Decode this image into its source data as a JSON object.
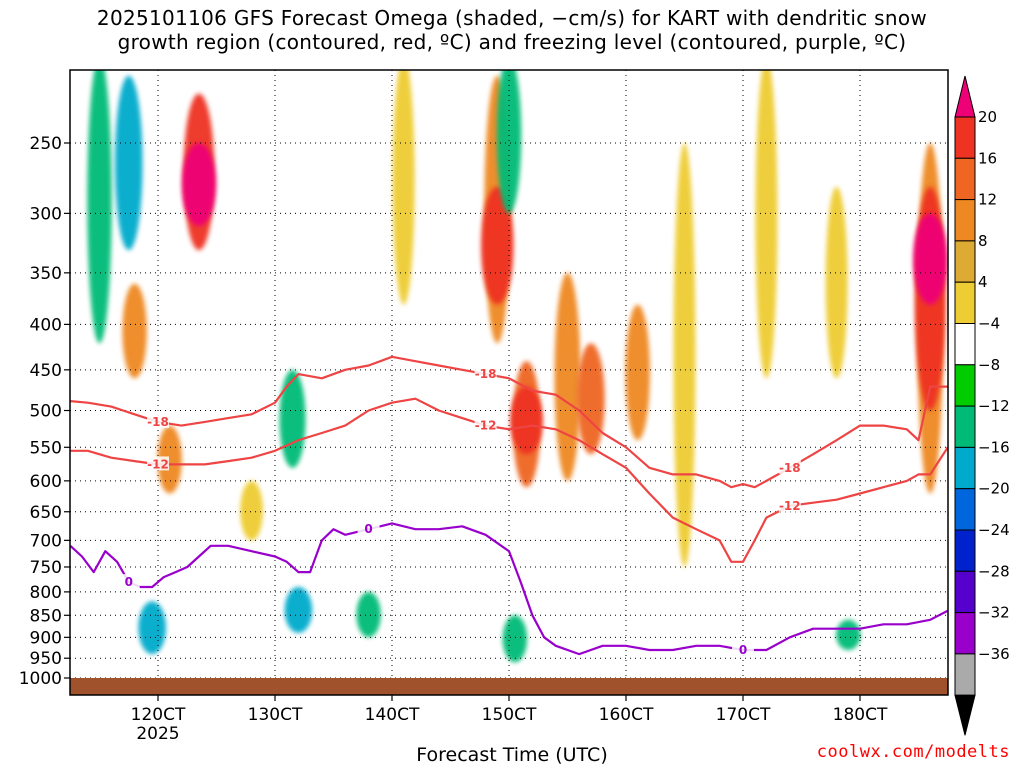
{
  "title": {
    "line1": "2025101106 GFS Forecast Omega (shaded, −cm/s) for KART with dendritic snow",
    "line2": "growth region (contoured, red, ºC) and freezing level (contoured, purple, ºC)"
  },
  "credit": "coolwx.com/modelts",
  "chart_data": {
    "type": "heatmap",
    "title": "2025101106 GFS Forecast Omega (shaded, −cm/s) for KART with dendritic snow growth region (contoured, red, ºC) and freezing level (contoured, purple, ºC)",
    "xlabel": "Forecast Time (UTC)",
    "ylabel": "",
    "x_unit": "hours",
    "xlim": [
      112.5,
      187.5
    ],
    "x_ticks": [
      {
        "value": 120,
        "label": "120CT"
      },
      {
        "value": 130,
        "label": "130CT"
      },
      {
        "value": 140,
        "label": "140CT"
      },
      {
        "value": 150,
        "label": "150CT"
      },
      {
        "value": 160,
        "label": "160CT"
      },
      {
        "value": 170,
        "label": "170CT"
      },
      {
        "value": 180,
        "label": "180CT"
      }
    ],
    "x_sublabel": "2025",
    "y_unit": "hPa",
    "ylim": [
      1000,
      200
    ],
    "y_ticks": [
      250,
      300,
      350,
      400,
      450,
      500,
      550,
      600,
      650,
      700,
      750,
      800,
      850,
      900,
      950,
      1000
    ],
    "colorbar": {
      "ticks": [
        "20",
        "16",
        "12",
        "8",
        "4",
        "−4",
        "−8",
        "−12",
        "−16",
        "−20",
        "−24",
        "−28",
        "−32",
        "−36"
      ],
      "colors": [
        "#ee0077",
        "#ee3322",
        "#ee6622",
        "#ee8822",
        "#ddaa33",
        "#eecc33",
        "#ffffff",
        "#00cc00",
        "#00bb77",
        "#00aacc",
        "#0066dd",
        "#0022cc",
        "#5500cc",
        "#9900cc",
        "#aaaaaa",
        "#000000"
      ]
    },
    "omega_cells": [
      {
        "x": 115,
        "p": [
          200,
          420
        ],
        "value": -8
      },
      {
        "x": 117.5,
        "p": [
          210,
          330
        ],
        "value": -12
      },
      {
        "x": 118,
        "p": [
          360,
          460
        ],
        "value": 8
      },
      {
        "x": 123.5,
        "p": [
          220,
          330
        ],
        "value": 16
      },
      {
        "x": 123.5,
        "p": [
          250,
          310
        ],
        "value": 20
      },
      {
        "x": 121,
        "p": [
          520,
          620
        ],
        "value": 8
      },
      {
        "x": 119.5,
        "p": [
          820,
          940
        ],
        "value": -12
      },
      {
        "x": 128,
        "p": [
          600,
          700
        ],
        "value": 6
      },
      {
        "x": 131.5,
        "p": [
          450,
          580
        ],
        "value": -10
      },
      {
        "x": 132,
        "p": [
          790,
          890
        ],
        "value": -12
      },
      {
        "x": 138,
        "p": [
          800,
          900
        ],
        "value": -8
      },
      {
        "x": 141,
        "p": [
          200,
          380
        ],
        "value": 5
      },
      {
        "x": 149,
        "p": [
          210,
          420
        ],
        "value": 10
      },
      {
        "x": 149,
        "p": [
          280,
          380
        ],
        "value": 18
      },
      {
        "x": 150,
        "p": [
          200,
          300
        ],
        "value": -8
      },
      {
        "x": 151.5,
        "p": [
          440,
          610
        ],
        "value": 12
      },
      {
        "x": 151.5,
        "p": [
          470,
          560
        ],
        "value": 18
      },
      {
        "x": 150.5,
        "p": [
          850,
          960
        ],
        "value": -8
      },
      {
        "x": 155,
        "p": [
          350,
          600
        ],
        "value": 10
      },
      {
        "x": 157,
        "p": [
          420,
          560
        ],
        "value": 12
      },
      {
        "x": 161,
        "p": [
          380,
          540
        ],
        "value": 8
      },
      {
        "x": 165,
        "p": [
          250,
          750
        ],
        "value": 5
      },
      {
        "x": 172,
        "p": [
          200,
          460
        ],
        "value": 5
      },
      {
        "x": 178,
        "p": [
          280,
          460
        ],
        "value": 5
      },
      {
        "x": 179,
        "p": [
          860,
          930
        ],
        "value": -8
      },
      {
        "x": 186,
        "p": [
          250,
          620
        ],
        "value": 10
      },
      {
        "x": 186,
        "p": [
          280,
          500
        ],
        "value": 16
      },
      {
        "x": 186,
        "p": [
          300,
          380
        ],
        "value": 20
      }
    ],
    "series": [
      {
        "name": "-18 ºC isotherm",
        "color": "#ee4444",
        "label": "-18",
        "x": [
          112.5,
          114,
          116,
          118,
          120,
          122,
          124,
          126,
          128,
          130,
          131,
          132,
          134,
          136,
          138,
          140,
          142,
          144,
          146,
          148,
          150,
          152,
          154,
          156,
          158,
          160,
          162,
          164,
          166,
          168,
          169,
          170,
          171,
          172,
          174,
          176,
          178,
          180,
          182,
          184,
          185,
          186,
          187.5
        ],
        "y": [
          488,
          490,
          495,
          505,
          515,
          520,
          515,
          510,
          505,
          490,
          470,
          455,
          460,
          450,
          445,
          435,
          440,
          445,
          450,
          455,
          460,
          475,
          480,
          500,
          530,
          550,
          580,
          590,
          590,
          600,
          610,
          605,
          610,
          600,
          580,
          560,
          540,
          520,
          520,
          525,
          540,
          470,
          470
        ]
      },
      {
        "name": "-12 ºC isotherm",
        "color": "#ee4444",
        "label": "-12",
        "x": [
          112.5,
          114,
          116,
          118,
          120,
          122,
          124,
          126,
          128,
          130,
          132,
          134,
          136,
          138,
          140,
          142,
          144,
          146,
          148,
          150,
          152,
          154,
          156,
          158,
          160,
          162,
          164,
          166,
          168,
          169,
          170,
          171,
          172,
          174,
          176,
          178,
          180,
          182,
          184,
          185,
          186,
          187.5
        ],
        "y": [
          555,
          555,
          565,
          570,
          575,
          575,
          575,
          570,
          565,
          555,
          540,
          530,
          520,
          500,
          490,
          485,
          500,
          510,
          520,
          525,
          520,
          525,
          540,
          560,
          580,
          620,
          660,
          680,
          700,
          740,
          740,
          700,
          660,
          640,
          635,
          630,
          620,
          610,
          600,
          590,
          590,
          550
        ]
      },
      {
        "name": "0 ºC freezing level",
        "color": "#9900cc",
        "label": "0",
        "x": [
          112.5,
          113.5,
          114.5,
          115.5,
          116.5,
          117.5,
          118.5,
          119.5,
          120.5,
          121.5,
          122.5,
          123.5,
          124.5,
          126,
          128,
          130,
          131,
          132,
          133,
          134,
          135,
          136,
          138,
          140,
          142,
          144,
          146,
          148,
          150,
          151,
          152,
          153,
          154,
          156,
          158,
          160,
          162,
          164,
          166,
          168,
          170,
          172,
          174,
          176,
          178,
          180,
          182,
          184,
          186,
          187.5
        ],
        "y": [
          710,
          730,
          760,
          720,
          740,
          780,
          790,
          790,
          770,
          760,
          750,
          730,
          710,
          710,
          720,
          730,
          740,
          760,
          760,
          700,
          680,
          690,
          680,
          670,
          680,
          680,
          675,
          690,
          720,
          780,
          850,
          900,
          920,
          940,
          920,
          920,
          930,
          930,
          920,
          920,
          930,
          930,
          900,
          880,
          880,
          880,
          870,
          870,
          860,
          840
        ]
      }
    ]
  }
}
